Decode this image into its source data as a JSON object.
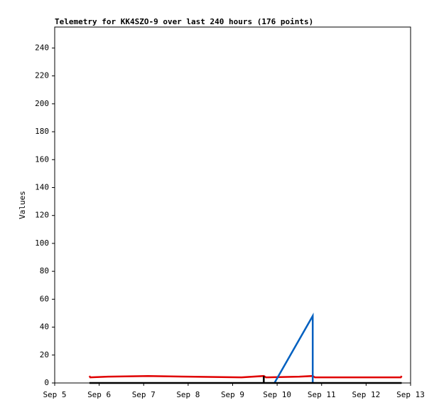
{
  "chart_data": {
    "type": "line",
    "title": "Telemetry for KK4SZO-9 over last 240 hours (176 points)",
    "y_label": "Values",
    "xlim": [
      5,
      13
    ],
    "xticks": [
      {
        "value": 5,
        "label": "Sep 5"
      },
      {
        "value": 6,
        "label": "Sep 6"
      },
      {
        "value": 7,
        "label": "Sep 7"
      },
      {
        "value": 8,
        "label": "Sep 8"
      },
      {
        "value": 9,
        "label": "Sep 9"
      },
      {
        "value": 10,
        "label": "Sep 10"
      },
      {
        "value": 11,
        "label": "Sep 11"
      },
      {
        "value": 12,
        "label": "Sep 12"
      },
      {
        "value": 13,
        "label": "Sep 13"
      }
    ],
    "ylim": [
      0,
      255
    ],
    "yticks": [
      0,
      20,
      40,
      60,
      80,
      100,
      120,
      140,
      160,
      180,
      200,
      220,
      240
    ],
    "series": [
      {
        "color": "#e00000",
        "x": [
          5.78,
          5.8,
          6.2,
          7.1,
          8.0,
          9.2,
          9.7,
          9.75,
          10.5,
          10.8,
          10.85,
          12.78,
          12.8
        ],
        "values": [
          5,
          4,
          4.5,
          5,
          4.5,
          4,
          5,
          4,
          4.5,
          5,
          4,
          4,
          5
        ]
      },
      {
        "color": "#0060c0",
        "x": [
          9.94,
          10.8,
          10.8
        ],
        "values": [
          0,
          48,
          0
        ]
      },
      {
        "color": "#000000",
        "x": [
          5.78,
          9.7,
          9.7,
          9.7,
          12.8
        ],
        "values": [
          0,
          0,
          5,
          0,
          0
        ]
      }
    ]
  }
}
